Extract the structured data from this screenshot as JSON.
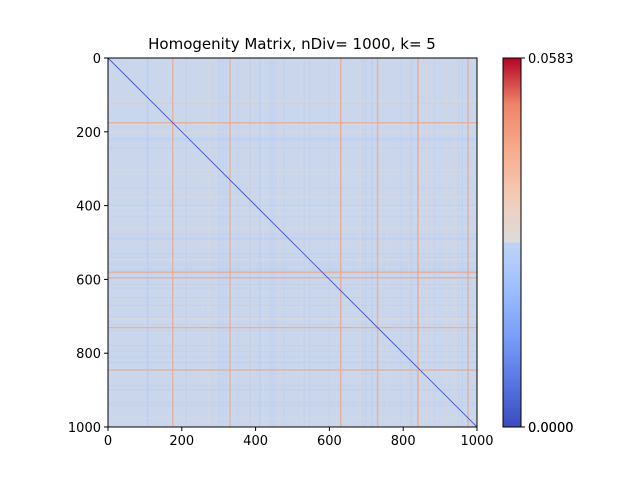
{
  "chart_data": {
    "type": "heatmap",
    "title": "Homogenity Matrix, nDiv= 1000, k= 5",
    "matrix_size": 1000,
    "x_ticks": [
      0,
      200,
      400,
      600,
      800,
      1000
    ],
    "x_tick_labels": [
      "0",
      "200",
      "400",
      "600",
      "800",
      "1000"
    ],
    "y_ticks": [
      0,
      200,
      400,
      600,
      800,
      1000
    ],
    "y_tick_labels": [
      "0",
      "200",
      "400",
      "600",
      "800",
      "1000"
    ],
    "xlim": [
      0,
      1000
    ],
    "ylim": [
      1000,
      0
    ],
    "colormap": "coolwarm",
    "colorbar": {
      "min": 0.0,
      "max": 0.0583,
      "tick_labels": [
        "0.0583",
        "0.0000",
        "0.0000"
      ]
    },
    "diagonal_value": 0.0,
    "typical_value_range": [
      0.015,
      0.035
    ],
    "highlight_rows": [
      175,
      580,
      595,
      730,
      845
    ],
    "highlight_cols": [
      175,
      330,
      630,
      730,
      840,
      975
    ],
    "grid": false,
    "colors": {
      "low": "#3b4cc0",
      "mid": "#dddcdc",
      "high": "#b40426",
      "background": "#c9d6ec"
    }
  }
}
